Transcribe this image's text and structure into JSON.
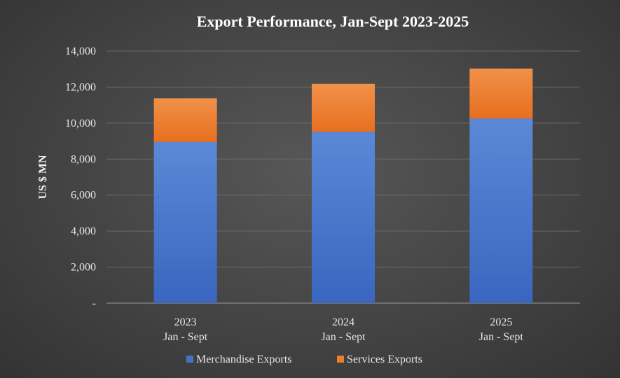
{
  "chart_data": {
    "type": "bar",
    "stacked": true,
    "title": "Export Performance, Jan-Sept  2023-2025",
    "ylabel": "US $ MN",
    "xlabel": "",
    "categories": [
      {
        "year": "2023",
        "period": "Jan - Sept"
      },
      {
        "year": "2024",
        "period": "Jan - Sept"
      },
      {
        "year": "2025",
        "period": "Jan - Sept"
      }
    ],
    "series": [
      {
        "name": "Merchandise Exports",
        "color": "#4472c4",
        "values": [
          8950,
          9520,
          10250
        ]
      },
      {
        "name": "Services Exports",
        "color": "#ed7d31",
        "values": [
          2430,
          2660,
          2780
        ]
      }
    ],
    "ylim": [
      0,
      14000
    ],
    "yticks": [
      {
        "value": 0,
        "label": "-"
      },
      {
        "value": 2000,
        "label": "2,000"
      },
      {
        "value": 4000,
        "label": "4,000"
      },
      {
        "value": 6000,
        "label": "6,000"
      },
      {
        "value": 8000,
        "label": "8,000"
      },
      {
        "value": 10000,
        "label": "10,000"
      },
      {
        "value": 12000,
        "label": "12,000"
      },
      {
        "value": 14000,
        "label": "14,000"
      }
    ],
    "grid": true,
    "legend_position": "bottom"
  }
}
